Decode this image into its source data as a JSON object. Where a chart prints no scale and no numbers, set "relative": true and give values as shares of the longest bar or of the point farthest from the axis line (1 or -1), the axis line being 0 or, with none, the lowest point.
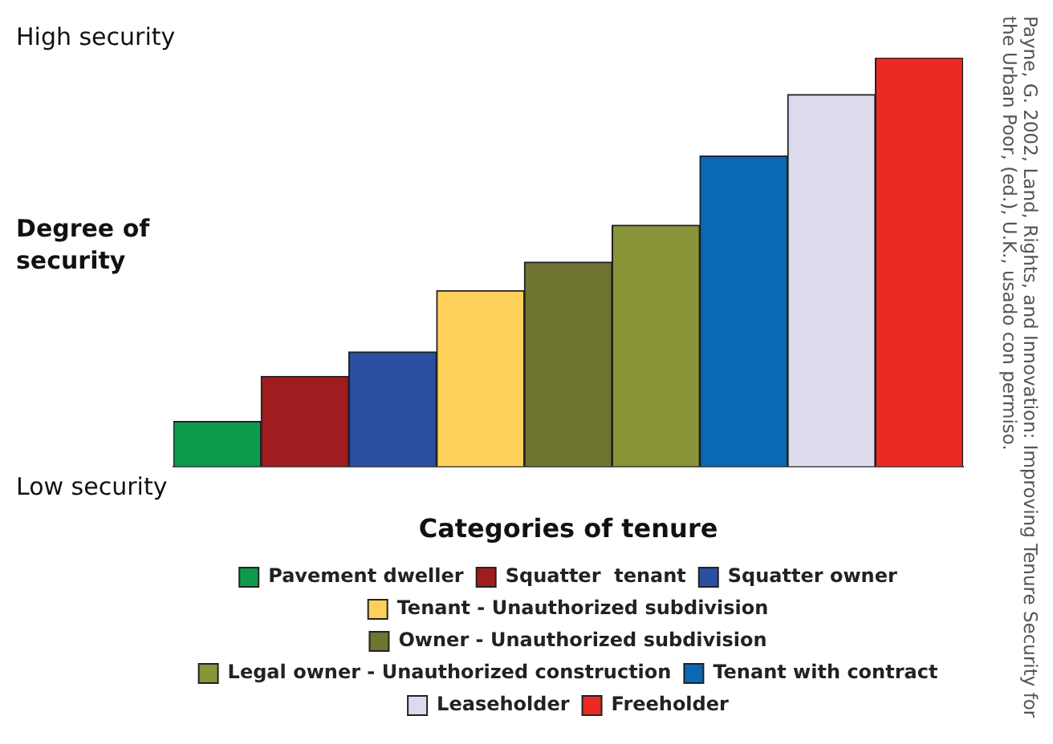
{
  "chart_data": {
    "type": "bar",
    "relative": true,
    "stacked": true,
    "legend_title": "Categories of tenure",
    "legend": "bottom",
    "categories": [
      null,
      null,
      null,
      null,
      null,
      null,
      null,
      null,
      null
    ],
    "series": [
      {
        "name": "Pavement dweller",
        "color": "#0d9a4c",
        "values": [
          0.11,
          null,
          null,
          null,
          null,
          null,
          null,
          null,
          null
        ]
      },
      {
        "name": "Squatter  tenant",
        "color": "#a01c1f",
        "values": [
          null,
          0.22,
          null,
          null,
          null,
          null,
          null,
          null,
          null
        ]
      },
      {
        "name": "Squatter owner",
        "color": "#2a4fa3",
        "values": [
          null,
          null,
          0.28,
          null,
          null,
          null,
          null,
          null,
          null
        ]
      },
      {
        "name": "Tenant - Unauthorized subdivision",
        "color": "#fdd05a",
        "values": [
          null,
          null,
          null,
          0.43,
          null,
          null,
          null,
          null,
          null
        ]
      },
      {
        "name": "Owner - Unauthorized subdivision",
        "color": "#6f7430",
        "values": [
          null,
          null,
          null,
          null,
          0.5,
          null,
          null,
          null,
          null
        ]
      },
      {
        "name": "Legal owner - Unauthorized construction",
        "color": "#8a9438",
        "values": [
          null,
          null,
          null,
          null,
          null,
          0.59,
          null,
          null,
          null
        ]
      },
      {
        "name": "Tenant with contract",
        "color": "#0a68b4",
        "values": [
          null,
          null,
          null,
          null,
          null,
          null,
          0.76,
          null,
          null
        ]
      },
      {
        "name": "Leaseholder",
        "color": "#dcdaec",
        "values": [
          null,
          null,
          null,
          null,
          null,
          null,
          null,
          0.91,
          null
        ]
      },
      {
        "name": "Freeholder",
        "color": "#ec2a24",
        "values": [
          null,
          null,
          null,
          null,
          null,
          null,
          null,
          null,
          1
        ]
      }
    ],
    "annotations": [
      "High security",
      "Degree of security",
      "Low security",
      "Payne, G. 2002, Land, Rights, and Innovation: Improving Tenure Security for the Urban Poor, (ed.), U.K., usado con permiso."
    ]
  }
}
